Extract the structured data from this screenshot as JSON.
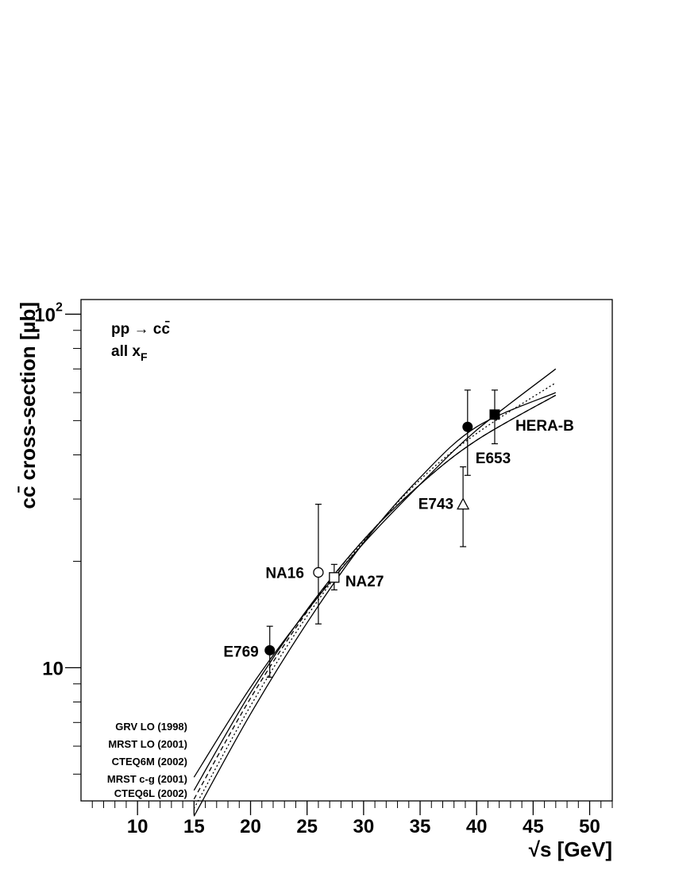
{
  "chart_data": {
    "type": "line",
    "y_scale": "log",
    "xlim": [
      5,
      52
    ],
    "ylim": [
      4.2,
      110
    ],
    "xlabel": "√s [GeV]",
    "ylabel": "cc̄ cross-section [µb]",
    "x_ticks": [
      10,
      15,
      20,
      25,
      30,
      35,
      40,
      45,
      50
    ],
    "x_tick_labels": [
      "10",
      "15",
      "20",
      "25",
      "30",
      "35",
      "40",
      "45",
      "50"
    ],
    "y_ticks": [
      10,
      100
    ],
    "y_tick_labels": [
      "10",
      "10²"
    ],
    "annotation": [
      "pp → cc̄",
      "all x_F"
    ],
    "series": [
      {
        "name": "GRV LO (1998)",
        "style": "solid",
        "x": [
          15,
          20,
          25,
          30,
          35,
          40,
          47
        ],
        "y": [
          4.9,
          8.8,
          14.5,
          22.5,
          33,
          47,
          70
        ]
      },
      {
        "name": "MRST LO (2001)",
        "style": "solid",
        "x": [
          15,
          20,
          25,
          30,
          35,
          40,
          47
        ],
        "y": [
          4.5,
          8.5,
          14.6,
          23,
          33,
          44,
          59
        ]
      },
      {
        "name": "CTEQ6M (2002)",
        "style": "dashed",
        "x": [
          15,
          20,
          25,
          30,
          35,
          40,
          47
        ],
        "y": [
          4.25,
          8.2,
          14.4,
          23,
          33,
          44,
          59
        ]
      },
      {
        "name": "MRST c-g (2001)",
        "style": "dotted",
        "x": [
          15,
          20,
          25,
          30,
          35,
          40,
          47
        ],
        "y": [
          4.0,
          7.8,
          14,
          22.8,
          34,
          46,
          64
        ]
      },
      {
        "name": "CTEQ6L (2002)",
        "style": "solid",
        "x": [
          15,
          20,
          25,
          30,
          35,
          40,
          47
        ],
        "y": [
          3.8,
          7.4,
          13.4,
          22.6,
          34.5,
          48,
          60
        ]
      }
    ],
    "points": [
      {
        "name": "E769",
        "x": 21.7,
        "y": 11.2,
        "ylo": 9.4,
        "yhi": 13.1,
        "marker": "circle-filled"
      },
      {
        "name": "NA16",
        "x": 26,
        "y": 18.6,
        "ylo": 13.3,
        "yhi": 29,
        "marker": "circle-open"
      },
      {
        "name": "NA27",
        "x": 27.4,
        "y": 18.0,
        "ylo": 16.6,
        "yhi": 19.6,
        "marker": "square-open"
      },
      {
        "name": "E743",
        "x": 38.8,
        "y": 29,
        "ylo": 22,
        "yhi": 37,
        "marker": "triangle-open"
      },
      {
        "name": "E653",
        "x": 39.2,
        "y": 48,
        "ylo": 35,
        "yhi": 61,
        "marker": "circle-filled"
      },
      {
        "name": "HERA-B",
        "x": 41.6,
        "y": 52,
        "ylo": 43,
        "yhi": 61,
        "marker": "square-filled"
      }
    ]
  }
}
